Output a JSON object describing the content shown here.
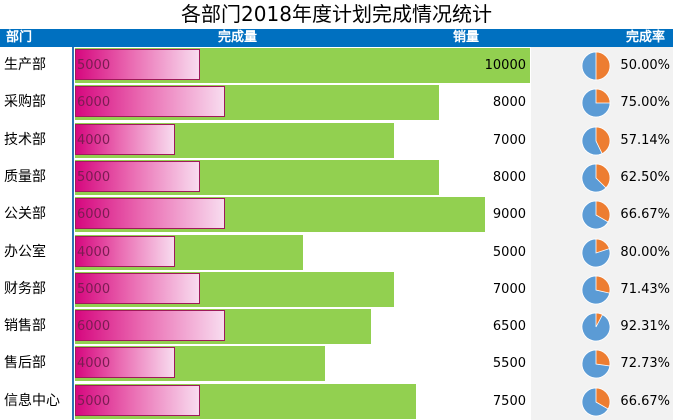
{
  "title": "各部门2018年度计划完成情况统计",
  "header": {
    "dept": "部门",
    "completed": "完成量",
    "sales": "销量",
    "rate": "完成率"
  },
  "colors": {
    "header_bg": "#0070c0",
    "sales_bg": "#92d050",
    "completed_bar": "#d6087f",
    "pie_remaining": "#ed7d31",
    "pie_completed": "#5b9bd5"
  },
  "chart_data": {
    "type": "bar",
    "categories": [
      "生产部",
      "采购部",
      "技术部",
      "质量部",
      "公关部",
      "办公室",
      "财务部",
      "销售部",
      "售后部",
      "信息中心"
    ],
    "series": [
      {
        "name": "完成量",
        "values": [
          5000,
          6000,
          4000,
          5000,
          6000,
          4000,
          5000,
          6000,
          4000,
          5000
        ]
      },
      {
        "name": "销量",
        "values": [
          10000,
          8000,
          7000,
          8000,
          9000,
          5000,
          7000,
          6500,
          5500,
          7500
        ]
      }
    ],
    "rates": [
      "50.00%",
      "75.00%",
      "57.14%",
      "62.50%",
      "66.67%",
      "80.00%",
      "71.43%",
      "92.31%",
      "72.73%",
      "66.67%"
    ],
    "rate_values": [
      0.5,
      0.75,
      0.5714,
      0.625,
      0.6667,
      0.8,
      0.7143,
      0.9231,
      0.7273,
      0.6667
    ],
    "xlim": [
      0,
      10000
    ]
  }
}
